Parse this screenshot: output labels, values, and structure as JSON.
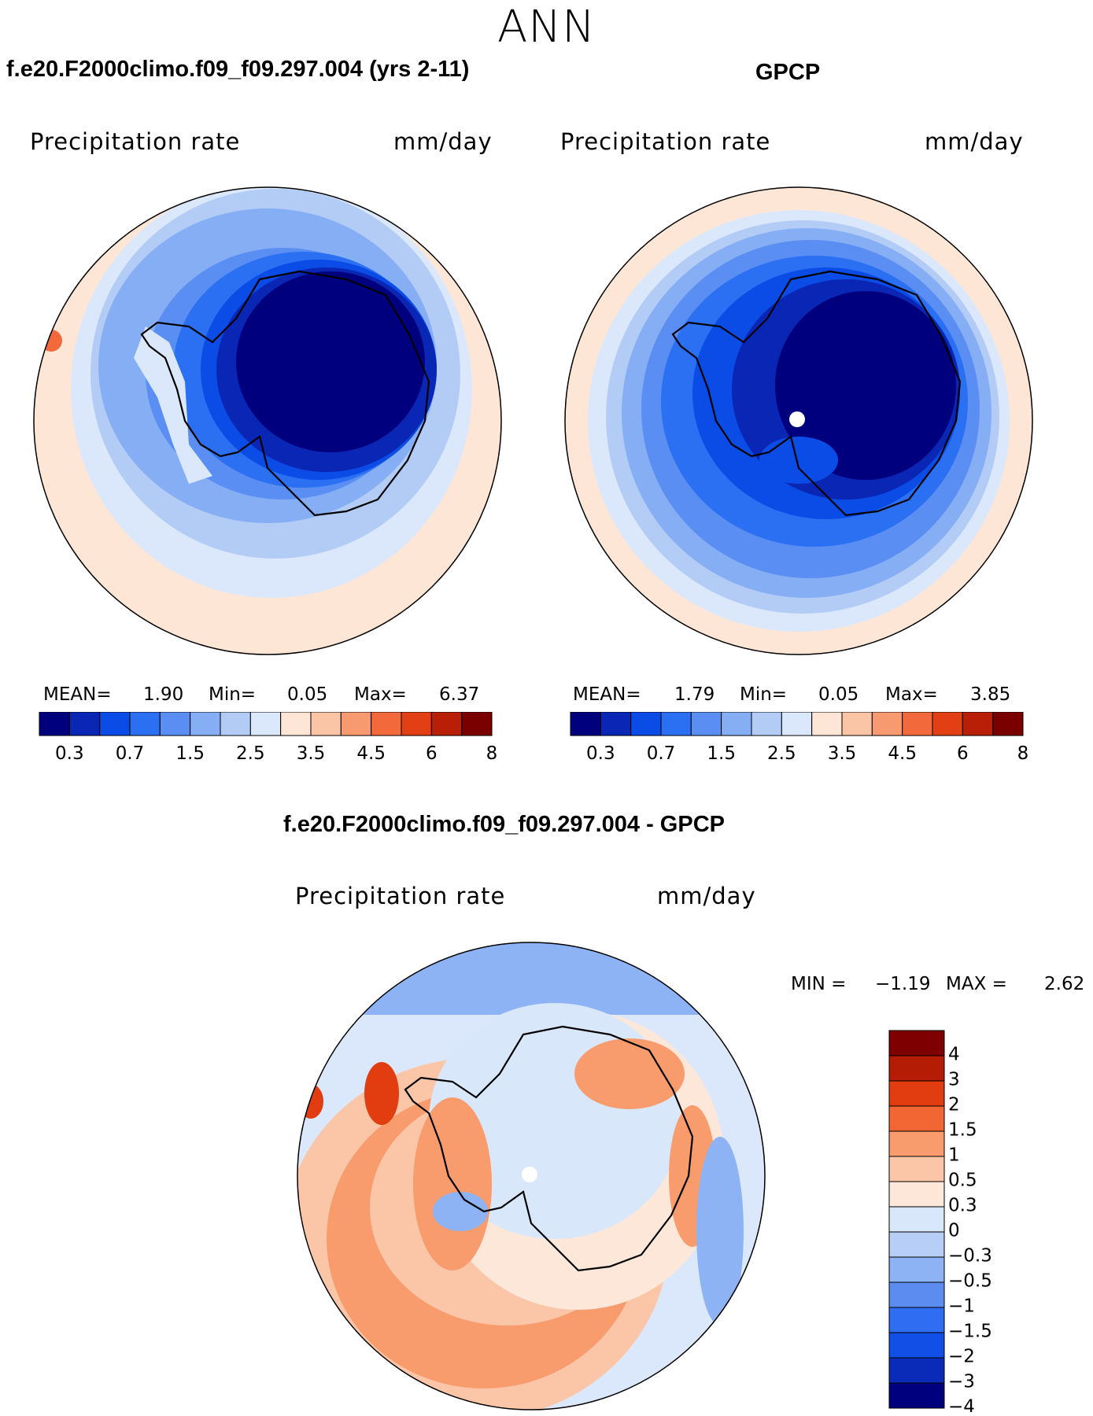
{
  "page": {
    "season": "ANN"
  },
  "panels": {
    "model": {
      "title": "f.e20.F2000climo.f09_f09.297.004 (yrs 2-11)",
      "variable": "Precipitation rate",
      "units": "mm/day",
      "stats": {
        "mean_label": "MEAN=",
        "mean": "1.90",
        "min_label": "Min=",
        "min": "0.05",
        "max_label": "Max=",
        "max": "6.37"
      }
    },
    "obs": {
      "title": "GPCP",
      "variable": "Precipitation rate",
      "units": "mm/day",
      "stats": {
        "mean_label": "MEAN=",
        "mean": "1.79",
        "min_label": "Min=",
        "min": "0.05",
        "max_label": "Max=",
        "max": "3.85"
      }
    },
    "diff": {
      "title": "f.e20.F2000climo.f09_f09.297.004 - GPCP",
      "variable": "Precipitation rate",
      "units": "mm/day",
      "stats": {
        "min_label": "MIN =",
        "min": "−1.19",
        "max_label": "MAX =",
        "max": "2.62"
      }
    }
  },
  "colorbars": {
    "abs": {
      "colors": [
        "#00007f",
        "#0a26b4",
        "#0b4be6",
        "#2b6ff2",
        "#5a8ef2",
        "#86aef4",
        "#b3ccf6",
        "#dbe8fb",
        "#fde6d6",
        "#fac4a6",
        "#f89a70",
        "#f26a3c",
        "#e23f15",
        "#b91f06",
        "#7a0000"
      ],
      "labels": [
        "0.3",
        "0.7",
        "1.5",
        "2.5",
        "3.5",
        "4.5",
        "6",
        "8"
      ]
    },
    "diff": {
      "colors_top_to_bottom": [
        "#7f0000",
        "#b51c05",
        "#e13d10",
        "#f26634",
        "#f89c6d",
        "#fbc6a8",
        "#fde7d8",
        "#d9e7fb",
        "#b7cef6",
        "#8eb3f4",
        "#5c8cf0",
        "#2f6df2",
        "#124fe6",
        "#0a2bb8",
        "#00007f"
      ],
      "labels": [
        "4",
        "3",
        "2",
        "1.5",
        "1",
        "0.5",
        "0.3",
        "0",
        "−0.3",
        "−0.5",
        "−1",
        "−1.5",
        "−2",
        "−3",
        "−4"
      ]
    }
  }
}
